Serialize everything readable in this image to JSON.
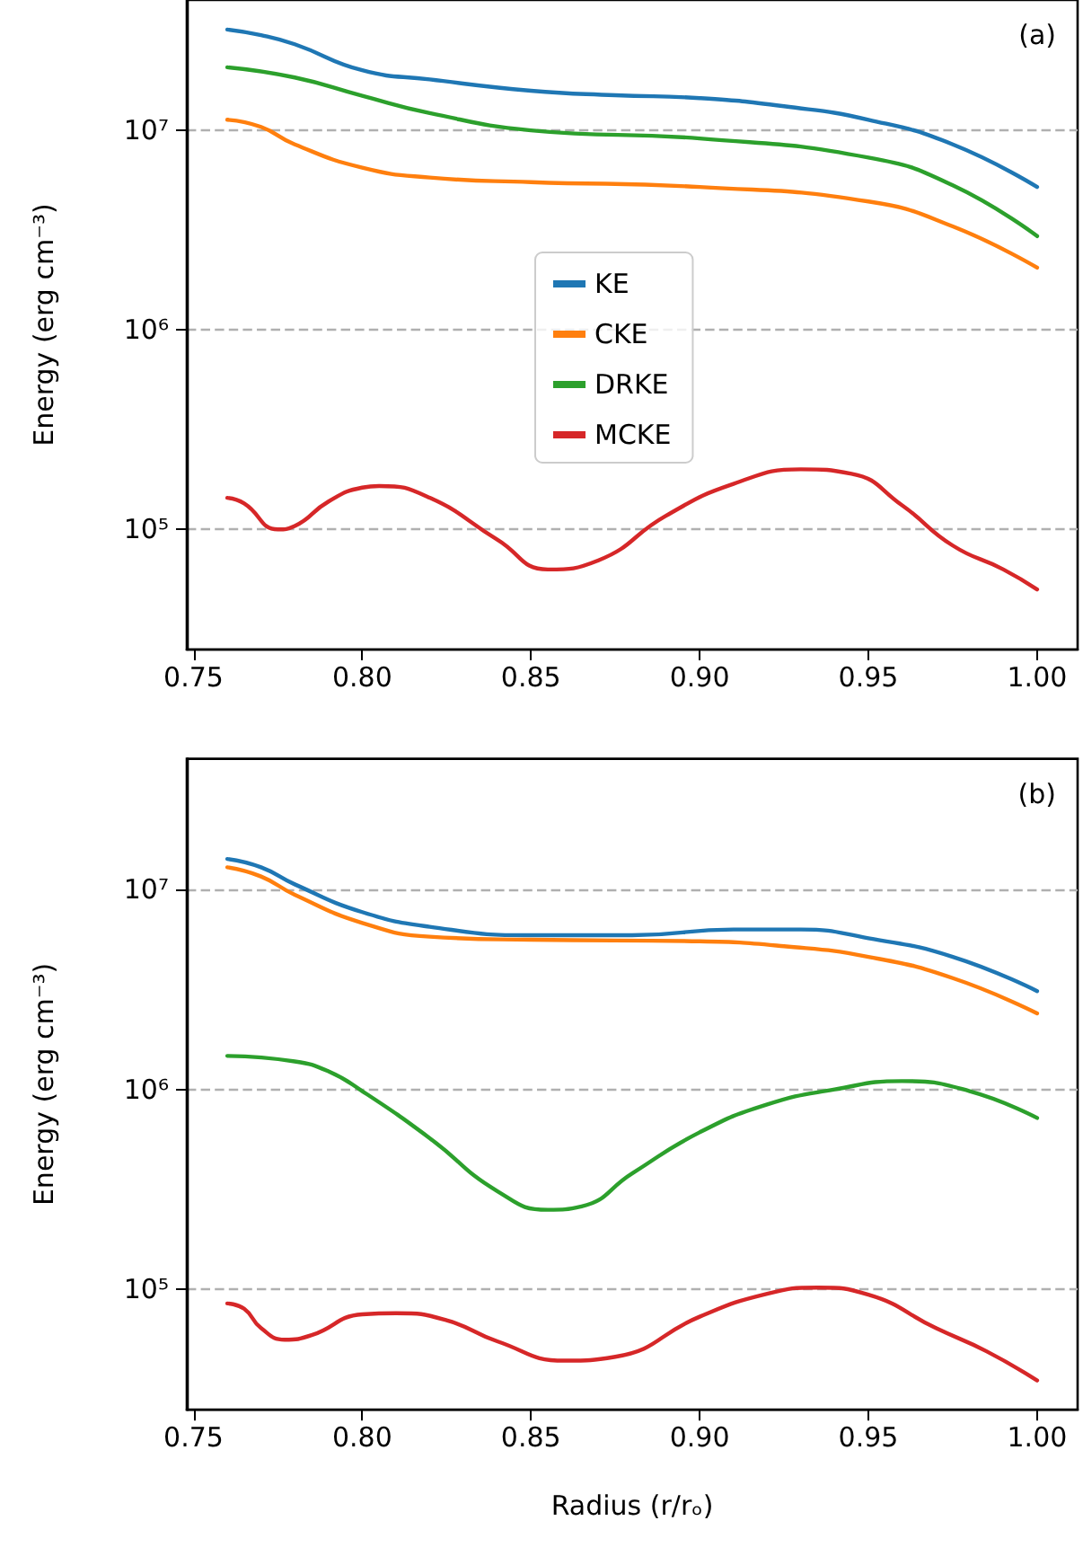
{
  "chart_data": [
    {
      "type": "line",
      "ylabel": "Energy (erg cm⁻³)",
      "annotations": [
        "(a)"
      ],
      "log": "y",
      "grid": "y",
      "legend": "center",
      "marker": "none",
      "line_style": "solid",
      "xlim": [
        0.748,
        1.012
      ],
      "xticks": [
        {
          "value": 0.75,
          "label": "0.75"
        },
        {
          "value": 0.8,
          "label": "0.80"
        },
        {
          "value": 0.85,
          "label": "0.85"
        },
        {
          "value": 0.9,
          "label": "0.90"
        },
        {
          "value": 0.95,
          "label": "0.95"
        },
        {
          "value": 1.0,
          "label": "1.00"
        }
      ],
      "ylim": [
        25000,
        45000000
      ],
      "yticks": [
        {
          "value": 100000,
          "label": "10⁵"
        },
        {
          "value": 1000000,
          "label": "10⁶"
        },
        {
          "value": 10000000,
          "label": "10⁷"
        }
      ],
      "series": [
        {
          "name": "KE",
          "color": "#1f77b4",
          "x": [
            0.76,
            0.77,
            0.78,
            0.8,
            0.82,
            0.85,
            0.875,
            0.9,
            0.925,
            0.95,
            0.975,
            1.0
          ],
          "values": [
            32000000,
            30000000,
            27000000,
            20000000,
            18000000,
            15800000,
            15000000,
            14500000,
            13200000,
            11300000,
            8500000,
            5200000
          ]
        },
        {
          "name": "CKE",
          "color": "#ff7f0e",
          "x": [
            0.76,
            0.77,
            0.78,
            0.8,
            0.82,
            0.85,
            0.9,
            0.95,
            0.975,
            1.0
          ],
          "values": [
            11300000,
            10400000,
            8500000,
            6500000,
            5800000,
            5500000,
            5200000,
            4400000,
            3300000,
            2050000
          ]
        },
        {
          "name": "DRKE",
          "color": "#2ca02c",
          "x": [
            0.76,
            0.78,
            0.8,
            0.82,
            0.85,
            0.9,
            0.95,
            0.975,
            1.0
          ],
          "values": [
            20700000,
            18400000,
            14900000,
            12200000,
            10000000,
            9100000,
            7300000,
            5300000,
            2950000
          ]
        },
        {
          "name": "MCKE",
          "color": "#d62728",
          "x": [
            0.76,
            0.765,
            0.775,
            0.78,
            0.79,
            0.8,
            0.805,
            0.82,
            0.84,
            0.855,
            0.87,
            0.89,
            0.91,
            0.93,
            0.945,
            0.96,
            0.975,
            0.99,
            1.0
          ],
          "values": [
            144000,
            135000,
            100000,
            104000,
            138000,
            162000,
            165000,
            144000,
            89000,
            63000,
            70000,
            117000,
            169000,
            200000,
            190000,
            132000,
            83000,
            63000,
            50000
          ]
        }
      ]
    },
    {
      "type": "line",
      "xlabel": "Radius (r/rₒ)",
      "ylabel": "Energy (erg cm⁻³)",
      "annotations": [
        "(b)"
      ],
      "log": "y",
      "grid": "y",
      "marker": "none",
      "line_style": "solid",
      "xlim": [
        0.748,
        1.012
      ],
      "xticks": [
        {
          "value": 0.75,
          "label": "0.75"
        },
        {
          "value": 0.8,
          "label": "0.80"
        },
        {
          "value": 0.85,
          "label": "0.85"
        },
        {
          "value": 0.9,
          "label": "0.90"
        },
        {
          "value": 0.95,
          "label": "0.95"
        },
        {
          "value": 1.0,
          "label": "1.00"
        }
      ],
      "ylim": [
        25000,
        45000000
      ],
      "yticks": [
        {
          "value": 100000,
          "label": "10⁵"
        },
        {
          "value": 1000000,
          "label": "10⁶"
        },
        {
          "value": 10000000,
          "label": "10⁷"
        }
      ],
      "series": [
        {
          "color": "#1f77b4",
          "x": [
            0.76,
            0.77,
            0.78,
            0.8,
            0.82,
            0.85,
            0.88,
            0.91,
            0.93,
            0.95,
            0.975,
            1.0
          ],
          "values": [
            14200000,
            12900000,
            10600000,
            7700000,
            6500000,
            5900000,
            5900000,
            6300000,
            6300000,
            5700000,
            4600000,
            3100000
          ]
        },
        {
          "color": "#ff7f0e",
          "x": [
            0.76,
            0.77,
            0.78,
            0.8,
            0.82,
            0.85,
            0.9,
            0.925,
            0.95,
            0.975,
            1.0
          ],
          "values": [
            12900000,
            11600000,
            9400000,
            6800000,
            5800000,
            5600000,
            5500000,
            5200000,
            4600000,
            3600000,
            2400000
          ]
        },
        {
          "color": "#2ca02c",
          "x": [
            0.76,
            0.78,
            0.79,
            0.8,
            0.82,
            0.84,
            0.855,
            0.865,
            0.88,
            0.9,
            0.92,
            0.94,
            0.96,
            0.98,
            1.0
          ],
          "values": [
            1470000,
            1380000,
            1230000,
            980000,
            570000,
            310000,
            250000,
            260000,
            380000,
            610000,
            840000,
            1000000,
            1100000,
            980000,
            720000
          ]
        },
        {
          "color": "#d62728",
          "x": [
            0.76,
            0.765,
            0.77,
            0.777,
            0.785,
            0.8,
            0.81,
            0.825,
            0.84,
            0.86,
            0.875,
            0.9,
            0.92,
            0.935,
            0.95,
            0.97,
            0.985,
            1.0
          ],
          "values": [
            85000,
            80000,
            64000,
            56000,
            59000,
            75000,
            76000,
            70000,
            55000,
            44000,
            46000,
            73000,
            95000,
            102000,
            94000,
            64000,
            49000,
            35000
          ]
        }
      ]
    }
  ]
}
